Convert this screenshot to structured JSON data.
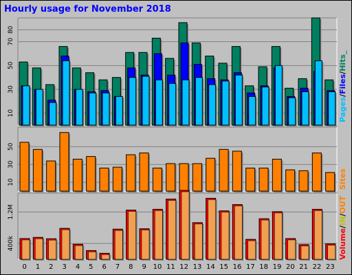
{
  "title": "Hourly usage for November 2018",
  "colors": {
    "background": "#c0c0c0",
    "pages": "#00c0ff",
    "files": "#0000ff",
    "hits": "#008060",
    "sites": "#ff8000",
    "volume": "#ff0000",
    "in": "#ffff00",
    "out": "#ff8000",
    "volume_bar": "#f0a050"
  },
  "legend_top": {
    "pages": "Pages",
    "sep1": "/",
    "files": "Files",
    "sep2": "/",
    "hits": "Hits_"
  },
  "legend_middle": {
    "sites": "Sites"
  },
  "legend_bottom": {
    "volume": "Volume",
    "sep1": "/",
    "in": "IN",
    "sep2": "/",
    "out": "OUT"
  },
  "chart_data": [
    {
      "type": "bar",
      "title": "",
      "categories": [
        "0",
        "1",
        "2",
        "3",
        "4",
        "5",
        "6",
        "7",
        "8",
        "9",
        "10",
        "11",
        "12",
        "13",
        "14",
        "15",
        "16",
        "17",
        "18",
        "19",
        "20",
        "21",
        "22",
        "23"
      ],
      "ylim": [
        0,
        90
      ],
      "yticks": [
        "10",
        "30",
        "50",
        "70",
        "80"
      ],
      "grid": true,
      "legend": "right",
      "series": [
        {
          "name": "Hits",
          "values": [
            53,
            48,
            34,
            66,
            48,
            44,
            38,
            40,
            61,
            61,
            73,
            56,
            86,
            69,
            58,
            52,
            66,
            33,
            49,
            66,
            31,
            39,
            90,
            38
          ]
        },
        {
          "name": "Files",
          "values": [
            33,
            30,
            21,
            58,
            30,
            28,
            29,
            24,
            48,
            42,
            60,
            42,
            69,
            51,
            39,
            38,
            44,
            27,
            33,
            48,
            24,
            31,
            45,
            29
          ]
        },
        {
          "name": "Pages",
          "values": [
            33,
            30,
            19,
            54,
            30,
            27,
            27,
            24,
            40,
            41,
            38,
            35,
            38,
            40,
            34,
            37,
            42,
            24,
            32,
            50,
            23,
            28,
            54,
            28
          ]
        }
      ]
    },
    {
      "type": "bar",
      "title": "",
      "categories": [
        "0",
        "1",
        "2",
        "3",
        "4",
        "5",
        "6",
        "7",
        "8",
        "9",
        "10",
        "11",
        "12",
        "13",
        "14",
        "15",
        "16",
        "17",
        "18",
        "19",
        "20",
        "21",
        "22",
        "23"
      ],
      "ylim": [
        0,
        72
      ],
      "yticks": [
        "10",
        "30",
        "50"
      ],
      "grid": true,
      "legend": "right",
      "series": [
        {
          "name": "Sites",
          "values": [
            55,
            47,
            34,
            66,
            36,
            39,
            26,
            27,
            41,
            43,
            26,
            31,
            31,
            31,
            37,
            47,
            45,
            26,
            26,
            36,
            24,
            23,
            43,
            21
          ]
        }
      ]
    },
    {
      "type": "bar",
      "title": "",
      "categories": [
        "0",
        "1",
        "2",
        "3",
        "4",
        "5",
        "6",
        "7",
        "8",
        "9",
        "10",
        "11",
        "12",
        "13",
        "14",
        "15",
        "16",
        "17",
        "18",
        "19",
        "20",
        "21",
        "22",
        "23"
      ],
      "ylim": [
        0,
        1680000
      ],
      "yticks": [
        "400k",
        "1.2M"
      ],
      "grid": true,
      "legend": "right",
      "series": [
        {
          "name": "Volume",
          "values": [
            525000,
            555000,
            520000,
            785000,
            380000,
            220000,
            150000,
            765000,
            1250000,
            775000,
            1270000,
            1530000,
            1750000,
            930000,
            1550000,
            1230000,
            1390000,
            505000,
            1030000,
            1210000,
            525000,
            370000,
            1270000,
            390000
          ]
        }
      ]
    }
  ]
}
